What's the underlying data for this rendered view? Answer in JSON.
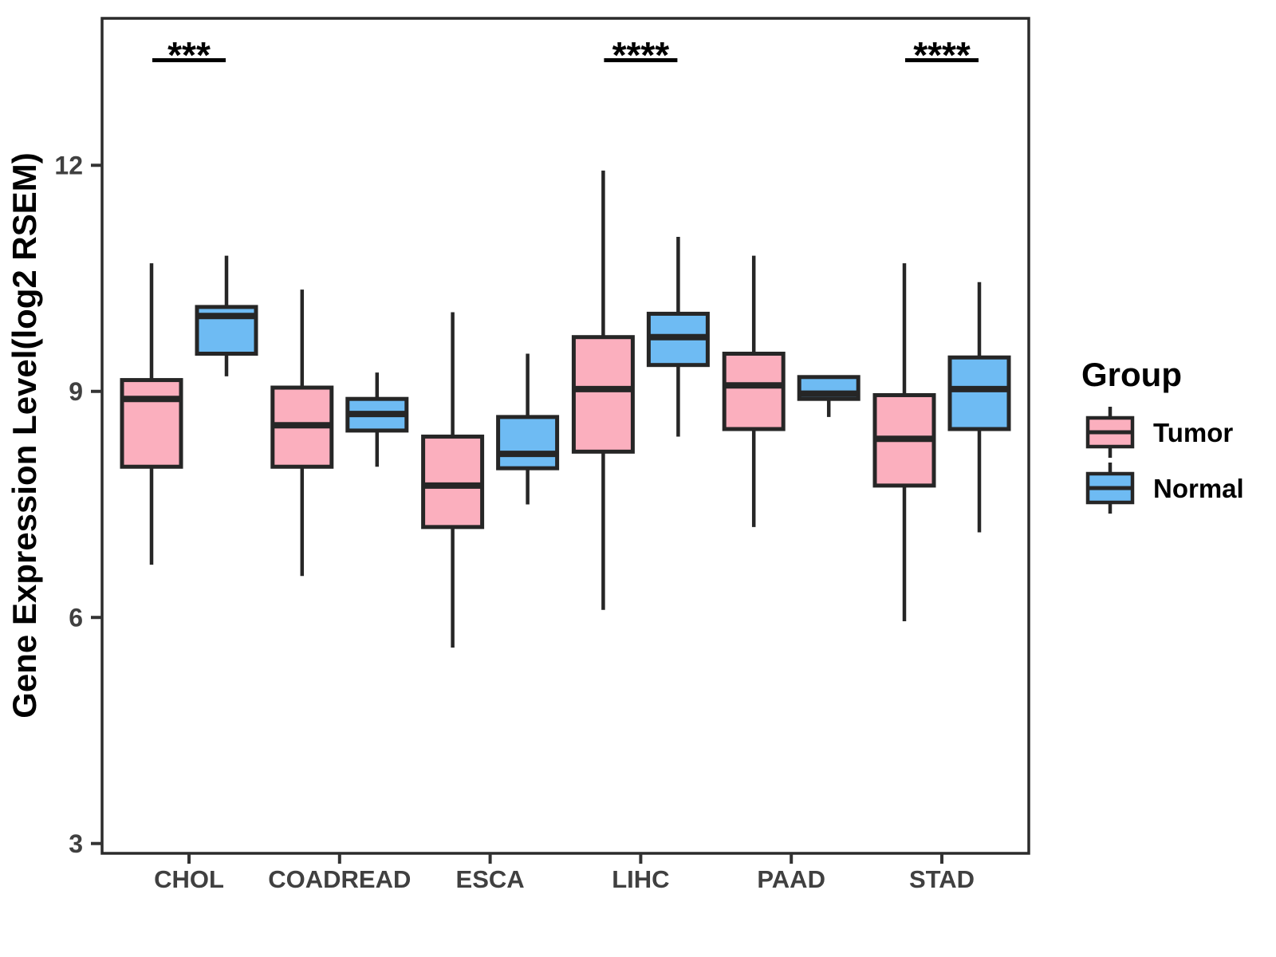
{
  "chart_data": {
    "type": "boxplot",
    "title": "",
    "xlabel": "",
    "ylabel": "Gene Expression Level(log2 RSEM)",
    "ylim": [
      2.87,
      13.95
    ],
    "yticks": [
      "3",
      "6",
      "9",
      "12"
    ],
    "grid": "off",
    "categories": [
      "CHOL",
      "COADREAD",
      "ESCA",
      "LIHC",
      "PAAD",
      "STAD"
    ],
    "series": [
      {
        "name": "Tumor",
        "color": "#FBAFBE",
        "boxes": [
          {
            "category": "CHOL",
            "min": 6.7,
            "q1": 8.0,
            "median": 8.9,
            "q3": 9.15,
            "max": 10.7
          },
          {
            "category": "COADREAD",
            "min": 6.55,
            "q1": 8.0,
            "median": 8.55,
            "q3": 9.05,
            "max": 10.35
          },
          {
            "category": "ESCA",
            "min": 5.6,
            "q1": 7.2,
            "median": 7.75,
            "q3": 8.4,
            "max": 10.05
          },
          {
            "category": "LIHC",
            "min": 6.1,
            "q1": 8.2,
            "median": 9.03,
            "q3": 9.72,
            "max": 11.93
          },
          {
            "category": "PAAD",
            "min": 7.2,
            "q1": 8.5,
            "median": 9.08,
            "q3": 9.5,
            "max": 10.8
          },
          {
            "category": "STAD",
            "min": 5.95,
            "q1": 7.75,
            "median": 8.37,
            "q3": 8.95,
            "max": 10.7
          }
        ]
      },
      {
        "name": "Normal",
        "color": "#6EBBF3",
        "boxes": [
          {
            "category": "CHOL",
            "min": 9.2,
            "q1": 9.5,
            "median": 10.0,
            "q3": 10.12,
            "max": 10.8
          },
          {
            "category": "COADREAD",
            "min": 8.0,
            "q1": 8.48,
            "median": 8.7,
            "q3": 8.9,
            "max": 9.25
          },
          {
            "category": "ESCA",
            "min": 7.5,
            "q1": 7.98,
            "median": 8.17,
            "q3": 8.66,
            "max": 9.5
          },
          {
            "category": "LIHC",
            "min": 8.4,
            "q1": 9.35,
            "median": 9.72,
            "q3": 10.03,
            "max": 11.05
          },
          {
            "category": "PAAD",
            "min": 8.66,
            "q1": 8.9,
            "median": 8.97,
            "q3": 9.19,
            "max": 9.19
          },
          {
            "category": "STAD",
            "min": 7.13,
            "q1": 8.5,
            "median": 9.03,
            "q3": 9.45,
            "max": 10.45
          }
        ]
      }
    ],
    "significance": [
      {
        "category": "CHOL",
        "label": "***"
      },
      {
        "category": "LIHC",
        "label": "****"
      },
      {
        "category": "STAD",
        "label": "****"
      }
    ],
    "legend": {
      "title": "Group",
      "entries": [
        "Tumor",
        "Normal"
      ],
      "position": "right"
    },
    "colors": {
      "box_border": "#262626",
      "panel_border": "#2B2B2B",
      "tick_label": "#404040",
      "axis_title": "#000000",
      "significance": "#000000"
    }
  }
}
